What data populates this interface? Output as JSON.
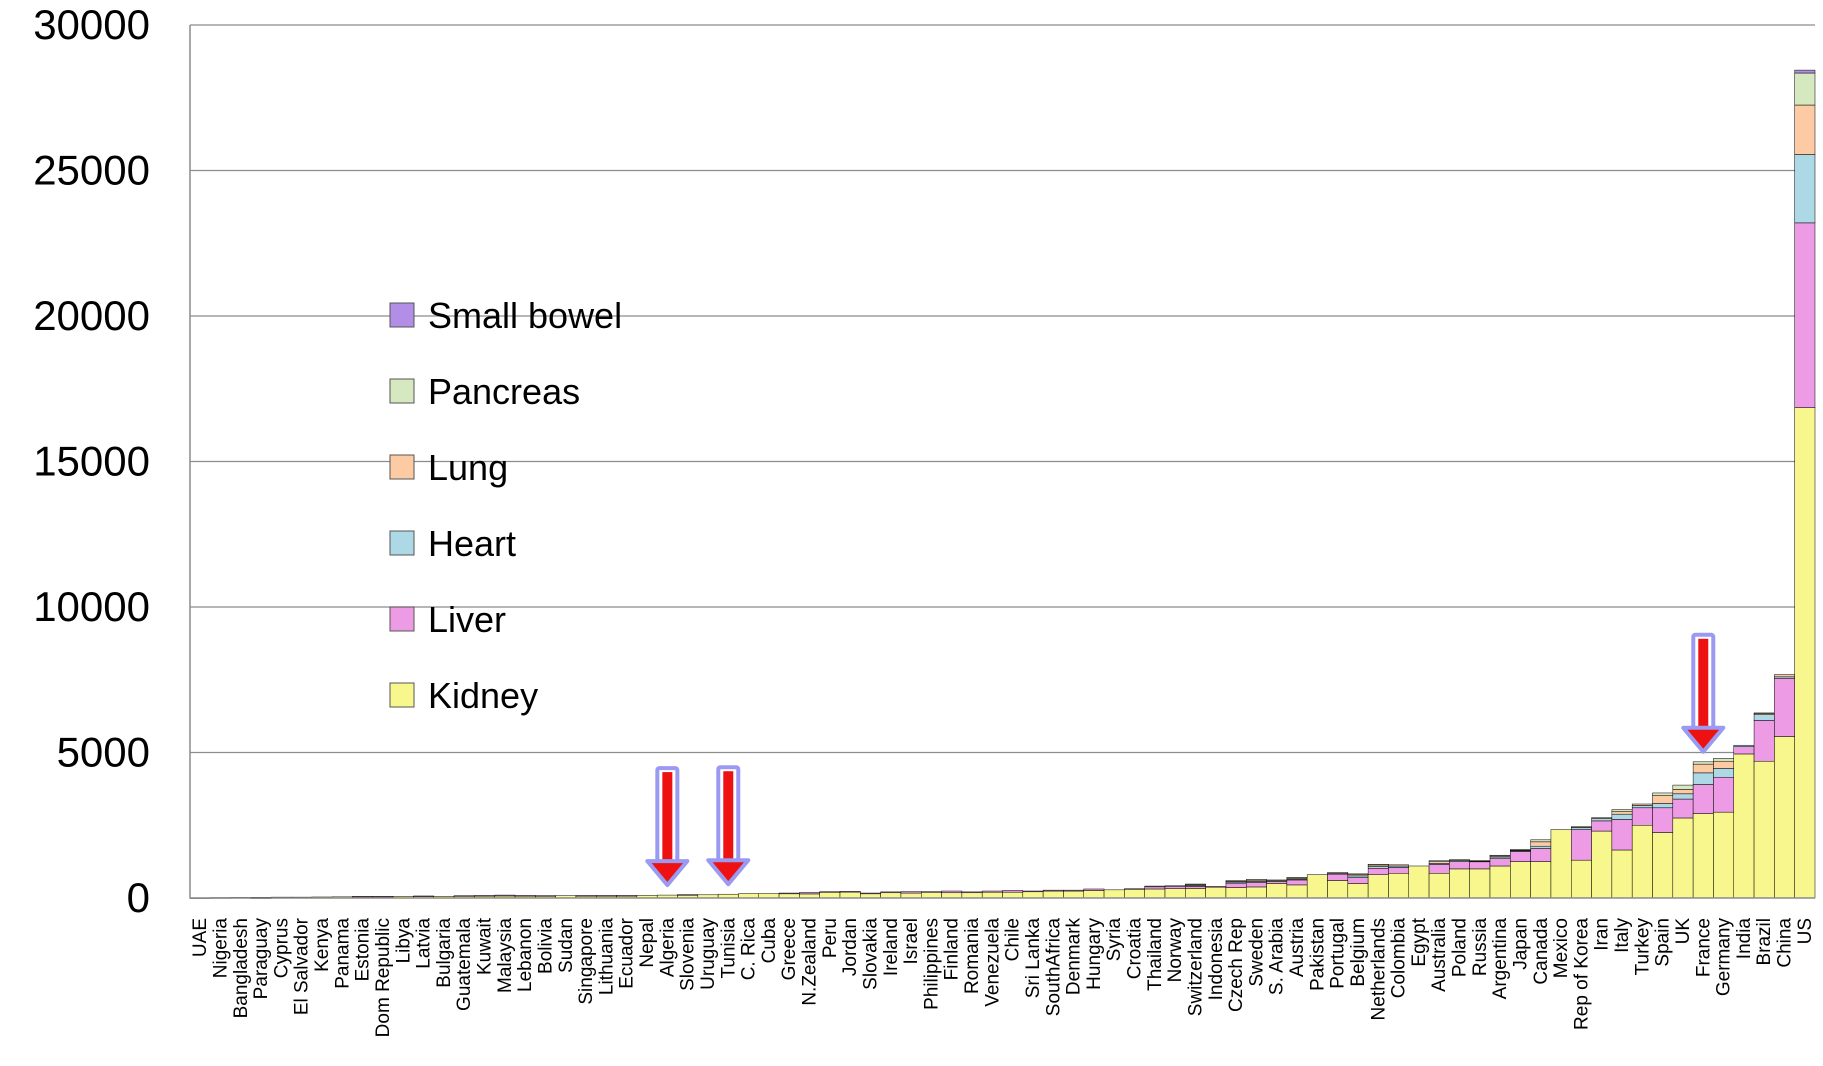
{
  "chart_data": {
    "type": "bar",
    "stacked": true,
    "title": "",
    "xlabel": "",
    "ylabel": "",
    "ylim": [
      0,
      30000
    ],
    "yticks": [
      0,
      5000,
      10000,
      15000,
      20000,
      25000,
      30000
    ],
    "ytick_labels": [
      "0",
      "5000",
      "10000",
      "15000",
      "20000",
      "25000",
      "30000"
    ],
    "grid": "horizontal",
    "legend_position": "left-middle",
    "categories": [
      "UAE",
      "Nigeria",
      "Bangladesh",
      "Paraguay",
      "Cyprus",
      "El Salvador",
      "Kenya",
      "Panama",
      "Estonia",
      "Dom Republic",
      "Libya",
      "Latvia",
      "Bulgaria",
      "Guatemala",
      "Kuwait",
      "Malaysia",
      "Lebanon",
      "Bolivia",
      "Sudan",
      "Singapore",
      "Lithuania",
      "Ecuador",
      "Nepal",
      "Algeria",
      "Slovenia",
      "Uruguay",
      "Tunisia",
      "C. Rica",
      "Cuba",
      "Greece",
      "N.Zealand",
      "Peru",
      "Jordan",
      "Slovakia",
      "Ireland",
      "Israel",
      "Philippines",
      "Finland",
      "Romania",
      "Venezuela",
      "Chile",
      "Sri Lanka",
      "SouthAfrica",
      "Denmark",
      "Hungary",
      "Syria",
      "Croatia",
      "Thailand",
      "Norway",
      "Switzerland",
      "Indonesia",
      "Czech Rep",
      "Sweden",
      "S. Arabia",
      "Austria",
      "Pakistan",
      "Portugal",
      "Belgium",
      "Netherlands",
      "Colombia",
      "Egypt",
      "Australia",
      "Poland",
      "Russia",
      "Argentina",
      "Japan",
      "Canada",
      "Mexico",
      "Rep of Korea",
      "Iran",
      "Italy",
      "Turkey",
      "Spain",
      "UK",
      "France",
      "Germany",
      "India",
      "Brazil",
      "China",
      "US"
    ],
    "series": [
      {
        "name": "Kidney",
        "color": "#f7f78e",
        "values": [
          10,
          15,
          20,
          10,
          30,
          30,
          35,
          40,
          50,
          50,
          60,
          60,
          60,
          70,
          70,
          70,
          70,
          75,
          80,
          70,
          70,
          80,
          90,
          100,
          100,
          110,
          130,
          150,
          150,
          160,
          140,
          200,
          210,
          150,
          180,
          170,
          200,
          180,
          180,
          200,
          200,
          220,
          240,
          240,
          260,
          280,
          300,
          310,
          320,
          330,
          380,
          360,
          380,
          500,
          450,
          800,
          600,
          500,
          800,
          850,
          1100,
          850,
          1000,
          1000,
          1100,
          1250,
          1250,
          2350,
          1300,
          2300,
          1650,
          2500,
          2250,
          2750,
          2900,
          2950,
          4950,
          4700,
          5550,
          16850
        ]
      },
      {
        "name": "Liver",
        "color": "#ee9be5",
        "values": [
          0,
          0,
          0,
          0,
          0,
          0,
          0,
          0,
          10,
          10,
          0,
          10,
          0,
          10,
          20,
          30,
          20,
          10,
          0,
          20,
          20,
          10,
          0,
          0,
          20,
          0,
          0,
          0,
          0,
          10,
          50,
          20,
          20,
          20,
          30,
          50,
          20,
          60,
          30,
          40,
          60,
          20,
          30,
          30,
          50,
          0,
          20,
          80,
          80,
          70,
          20,
          150,
          150,
          60,
          170,
          0,
          220,
          200,
          220,
          200,
          0,
          300,
          250,
          250,
          250,
          350,
          450,
          0,
          1050,
          350,
          1050,
          600,
          850,
          650,
          1000,
          1200,
          250,
          1400,
          2000,
          6350
        ]
      },
      {
        "name": "Heart",
        "color": "#add8e6",
        "values": [
          0,
          0,
          0,
          15,
          0,
          0,
          0,
          0,
          0,
          0,
          0,
          0,
          0,
          0,
          0,
          0,
          0,
          0,
          0,
          0,
          0,
          0,
          0,
          0,
          0,
          0,
          0,
          0,
          0,
          0,
          0,
          0,
          0,
          0,
          0,
          0,
          0,
          0,
          0,
          0,
          0,
          0,
          0,
          0,
          0,
          0,
          0,
          20,
          20,
          30,
          0,
          40,
          40,
          30,
          30,
          0,
          30,
          60,
          60,
          50,
          0,
          40,
          40,
          20,
          60,
          20,
          80,
          0,
          70,
          80,
          180,
          80,
          150,
          180,
          400,
          300,
          50,
          200,
          50,
          2350
        ]
      },
      {
        "name": "Lung",
        "color": "#fccba4",
        "values": [
          0,
          0,
          0,
          0,
          0,
          0,
          0,
          0,
          0,
          0,
          0,
          0,
          0,
          0,
          0,
          0,
          0,
          0,
          0,
          0,
          0,
          0,
          0,
          0,
          0,
          0,
          0,
          0,
          0,
          0,
          0,
          0,
          0,
          0,
          0,
          0,
          0,
          0,
          0,
          0,
          0,
          0,
          0,
          0,
          0,
          0,
          0,
          0,
          0,
          30,
          0,
          30,
          50,
          30,
          40,
          0,
          30,
          40,
          60,
          40,
          0,
          70,
          30,
          20,
          50,
          30,
          150,
          0,
          20,
          30,
          100,
          50,
          280,
          150,
          300,
          250,
          0,
          40,
          80,
          1700
        ]
      },
      {
        "name": "Pancreas",
        "color": "#d6e8c0",
        "values": [
          0,
          0,
          0,
          0,
          0,
          0,
          0,
          0,
          0,
          0,
          0,
          0,
          0,
          0,
          0,
          0,
          0,
          0,
          0,
          0,
          0,
          0,
          0,
          0,
          0,
          0,
          0,
          0,
          0,
          0,
          0,
          0,
          0,
          0,
          0,
          0,
          0,
          0,
          0,
          0,
          0,
          0,
          0,
          0,
          0,
          0,
          0,
          0,
          0,
          20,
          0,
          20,
          20,
          0,
          20,
          0,
          0,
          30,
          20,
          0,
          0,
          20,
          0,
          0,
          10,
          20,
          70,
          0,
          10,
          0,
          60,
          0,
          80,
          150,
          80,
          100,
          0,
          20,
          0,
          1100
        ]
      },
      {
        "name": "Small bowel",
        "color": "#b38ee6",
        "values": [
          0,
          0,
          0,
          0,
          0,
          0,
          0,
          0,
          0,
          0,
          0,
          0,
          0,
          0,
          0,
          0,
          0,
          0,
          0,
          0,
          0,
          0,
          0,
          0,
          0,
          0,
          0,
          0,
          0,
          0,
          0,
          0,
          0,
          0,
          0,
          0,
          0,
          0,
          0,
          0,
          0,
          0,
          0,
          0,
          0,
          0,
          0,
          0,
          0,
          0,
          0,
          0,
          0,
          0,
          0,
          0,
          0,
          0,
          0,
          0,
          0,
          0,
          0,
          0,
          0,
          0,
          0,
          0,
          0,
          0,
          0,
          0,
          0,
          0,
          0,
          0,
          0,
          0,
          0,
          100
        ]
      }
    ],
    "annotations": [
      {
        "type": "arrow",
        "target": "Algeria",
        "color": "#ee1111"
      },
      {
        "type": "arrow",
        "target": "Tunisia",
        "color": "#ee1111"
      },
      {
        "type": "arrow",
        "target": "France",
        "color": "#ee1111"
      }
    ],
    "legend": [
      "Small bowel",
      "Pancreas",
      "Lung",
      "Heart",
      "Liver",
      "Kidney"
    ]
  }
}
